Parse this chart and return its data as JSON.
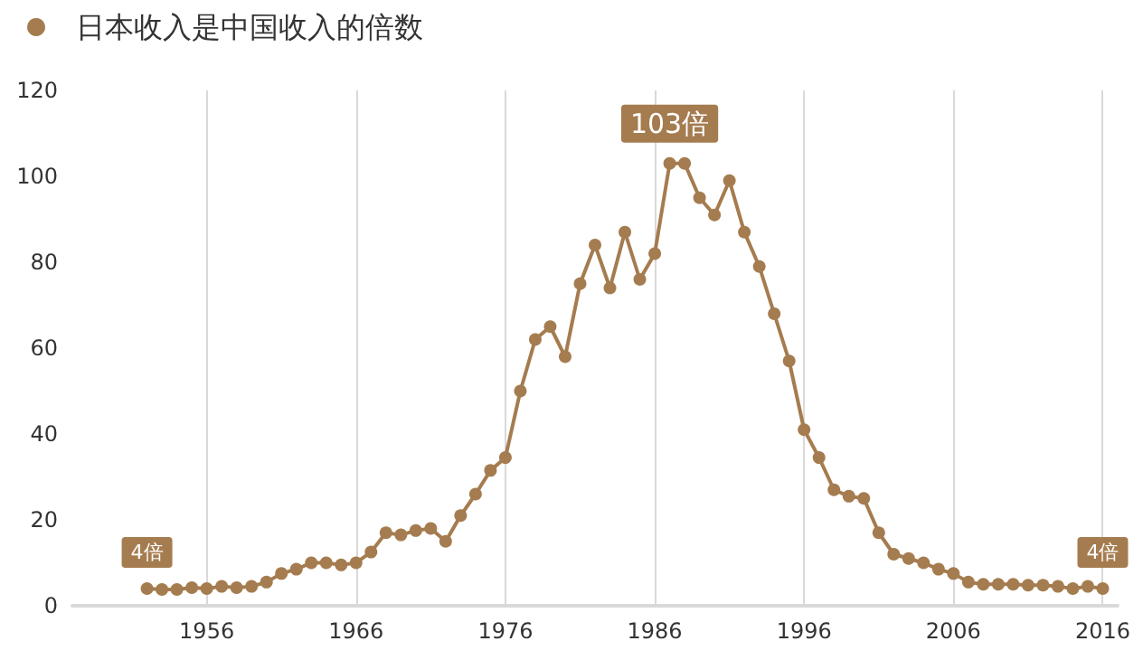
{
  "chart_data": {
    "type": "line",
    "x": [
      1952,
      1953,
      1954,
      1955,
      1956,
      1957,
      1958,
      1959,
      1960,
      1961,
      1962,
      1963,
      1964,
      1965,
      1966,
      1967,
      1968,
      1969,
      1970,
      1971,
      1972,
      1973,
      1974,
      1975,
      1976,
      1977,
      1978,
      1979,
      1980,
      1981,
      1982,
      1983,
      1984,
      1985,
      1986,
      1987,
      1988,
      1989,
      1990,
      1991,
      1992,
      1993,
      1994,
      1995,
      1996,
      1997,
      1998,
      1999,
      2000,
      2001,
      2002,
      2003,
      2004,
      2005,
      2006,
      2007,
      2008,
      2009,
      2010,
      2011,
      2012,
      2013,
      2014,
      2015,
      2016
    ],
    "series": [
      {
        "name": "日本收入是中国收入的倍数",
        "color": "#a57c4f",
        "values": [
          4,
          3.8,
          3.8,
          4.2,
          4,
          4.5,
          4.2,
          4.5,
          5.5,
          7.5,
          8.5,
          10,
          10,
          9.5,
          10,
          12.5,
          17,
          16.5,
          17.5,
          18,
          15,
          21,
          26,
          31.5,
          34.5,
          50,
          62,
          65,
          58,
          75,
          84,
          74,
          87,
          76,
          82,
          103,
          103,
          95,
          91,
          99,
          87,
          79,
          68,
          57,
          41,
          34.5,
          27,
          25.5,
          25,
          17,
          12,
          11,
          10,
          8.5,
          7.5,
          5.5,
          5,
          5,
          5,
          4.8,
          4.8,
          4.5,
          4,
          4.5,
          4
        ],
        "value_labels": [
          "4倍",
          null,
          null,
          null,
          null,
          null,
          null,
          null,
          null,
          null,
          null,
          null,
          null,
          null,
          null,
          null,
          null,
          null,
          null,
          null,
          null,
          null,
          null,
          null,
          null,
          null,
          null,
          null,
          null,
          null,
          null,
          null,
          null,
          null,
          null,
          "103倍",
          null,
          null,
          null,
          null,
          null,
          null,
          null,
          null,
          null,
          null,
          null,
          null,
          null,
          null,
          null,
          null,
          null,
          null,
          null,
          null,
          null,
          null,
          null,
          null,
          null,
          null,
          null,
          null,
          "4倍"
        ]
      }
    ],
    "xlim": [
      1947,
      2017
    ],
    "xticks": [
      1956,
      1966,
      1976,
      1986,
      1996,
      2006,
      2016
    ],
    "ylim": [
      0,
      120
    ],
    "yticks": [
      0,
      20,
      40,
      60,
      80,
      100,
      120
    ],
    "grid": "x",
    "legend": "top left",
    "marker": "circle",
    "line_style": "solid"
  }
}
